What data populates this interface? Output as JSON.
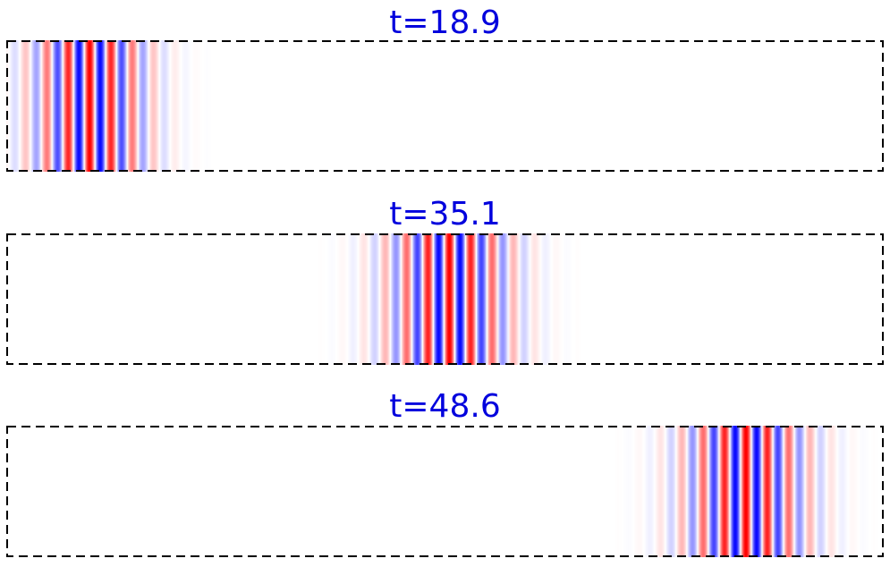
{
  "chart_data": [
    {
      "type": "heatmap",
      "title": "t=18.9",
      "xlabel": "",
      "ylabel": "",
      "colormap": {
        "negative": "#0000ff",
        "zero": "#ffffff",
        "positive": "#ff0000"
      },
      "value_range": [
        -1,
        1
      ],
      "domain": [
        0,
        1
      ],
      "wave_packet": {
        "center": 0.095,
        "width": 0.06,
        "wavelength": 0.0245,
        "max_abs_value": 1.0
      },
      "grid": false,
      "frame_style": "dashed"
    },
    {
      "type": "heatmap",
      "title": "t=35.1",
      "xlabel": "",
      "ylabel": "",
      "colormap": {
        "negative": "#0000ff",
        "zero": "#ffffff",
        "positive": "#ff0000"
      },
      "value_range": [
        -1,
        1
      ],
      "domain": [
        0,
        1
      ],
      "wave_packet": {
        "center": 0.505,
        "width": 0.065,
        "wavelength": 0.0245,
        "max_abs_value": 1.0
      },
      "grid": false,
      "frame_style": "dashed"
    },
    {
      "type": "heatmap",
      "title": "t=48.6",
      "xlabel": "",
      "ylabel": "",
      "colormap": {
        "negative": "#0000ff",
        "zero": "#ffffff",
        "positive": "#ff0000"
      },
      "value_range": [
        -1,
        1
      ],
      "domain": [
        0,
        1
      ],
      "wave_packet": {
        "center": 0.843,
        "width": 0.065,
        "wavelength": 0.0245,
        "max_abs_value": 1.0
      },
      "grid": false,
      "frame_style": "dashed"
    }
  ],
  "title_color": "#0000dd"
}
